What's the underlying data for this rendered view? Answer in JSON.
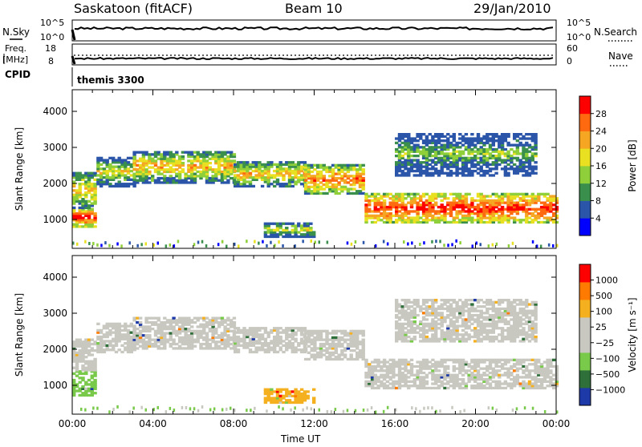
{
  "header": {
    "station": "Saskatoon (fitACF)",
    "beam": "Beam 10",
    "date": "29/Jan/2010"
  },
  "top_panels": {
    "nsky_label": "N.Sky",
    "nsky_ticks": [
      "10^5",
      "10^0"
    ],
    "nsearch_label": "N.Search",
    "nsearch_ticks": [
      "10^5",
      "10^0"
    ],
    "freq_label_1": "Freq.",
    "freq_label_2": "[MHz]",
    "freq_ticks": [
      "18",
      "8"
    ],
    "nave_label": "Nave",
    "nave_ticks": [
      "60",
      "0"
    ],
    "cpid_label": "CPID",
    "cpid_value": "themis 3300"
  },
  "chart_data": [
    {
      "type": "heatmap",
      "name": "power",
      "ylabel": "Slant Range [km]",
      "xlabel": "Time UT",
      "ylim": [
        200,
        4600
      ],
      "yticks": [
        "4000",
        "3000",
        "2000",
        "1000"
      ],
      "xticks": [
        "00:00",
        "04:00",
        "08:00",
        "12:00",
        "16:00",
        "20:00",
        "00:00"
      ],
      "colorbar": {
        "label": "Power [dB]",
        "ticks": [
          "28",
          "24",
          "20",
          "16",
          "12",
          "8",
          "4"
        ],
        "colors": [
          "#0000ff",
          "#2a55a8",
          "#3a8f4d",
          "#8ecf3a",
          "#e8e020",
          "#f5a623",
          "#ff6a10",
          "#ff0000"
        ]
      },
      "bands": [
        {
          "t": [
            0.0,
            1.2
          ],
          "r": [
            780,
            1300
          ],
          "level": 6
        },
        {
          "t": [
            0.0,
            1.2
          ],
          "r": [
            1300,
            2300
          ],
          "level": 4
        },
        {
          "t": [
            1.2,
            3.0
          ],
          "r": [
            1900,
            2700
          ],
          "level": 3
        },
        {
          "t": [
            3.0,
            8.0
          ],
          "r": [
            2000,
            2900
          ],
          "level": 4
        },
        {
          "t": [
            8.0,
            11.5
          ],
          "r": [
            1900,
            2600
          ],
          "level": 4
        },
        {
          "t": [
            11.5,
            14.5
          ],
          "r": [
            1700,
            2500
          ],
          "level": 5
        },
        {
          "t": [
            9.5,
            12.0
          ],
          "r": [
            500,
            900
          ],
          "level": 3
        },
        {
          "t": [
            14.5,
            24.0
          ],
          "r": [
            900,
            1700
          ],
          "level": 6
        },
        {
          "t": [
            16.0,
            23.0
          ],
          "r": [
            2200,
            3400
          ],
          "level": 2
        }
      ]
    },
    {
      "type": "heatmap",
      "name": "velocity",
      "ylabel": "Slant Range [km]",
      "xlabel": "Time UT",
      "ylim": [
        200,
        4600
      ],
      "yticks": [
        "4000",
        "3000",
        "2000",
        "1000"
      ],
      "xticks": [
        "00:00",
        "04:00",
        "08:00",
        "12:00",
        "16:00",
        "20:00",
        "00:00"
      ],
      "colorbar": {
        "label": "Velocity [m s⁻¹]",
        "ticks": [
          "1000",
          "500",
          "100",
          "25",
          "−25",
          "−100",
          "−500",
          "−1000"
        ],
        "colors": [
          "#1e3aa8",
          "#2f6f3a",
          "#79c94a",
          "#c8c8c0",
          "#c8c8c0",
          "#f5b020",
          "#ff7a00",
          "#ff0000"
        ]
      },
      "bands": [
        {
          "t": [
            0.0,
            1.2
          ],
          "r": [
            700,
            1400
          ],
          "level": 2
        },
        {
          "t": [
            0.0,
            1.2
          ],
          "r": [
            1400,
            2300
          ],
          "level": 3
        },
        {
          "t": [
            1.2,
            3.0
          ],
          "r": [
            1900,
            2700
          ],
          "level": 3
        },
        {
          "t": [
            3.0,
            8.0
          ],
          "r": [
            2000,
            2900
          ],
          "level": 3
        },
        {
          "t": [
            8.0,
            11.5
          ],
          "r": [
            1900,
            2600
          ],
          "level": 3
        },
        {
          "t": [
            11.5,
            14.5
          ],
          "r": [
            1700,
            2500
          ],
          "level": 3
        },
        {
          "t": [
            9.5,
            12.0
          ],
          "r": [
            500,
            900
          ],
          "level": 5
        },
        {
          "t": [
            14.5,
            24.0
          ],
          "r": [
            900,
            1700
          ],
          "level": 3
        },
        {
          "t": [
            16.0,
            23.0
          ],
          "r": [
            2200,
            3400
          ],
          "level": 3
        }
      ]
    }
  ]
}
